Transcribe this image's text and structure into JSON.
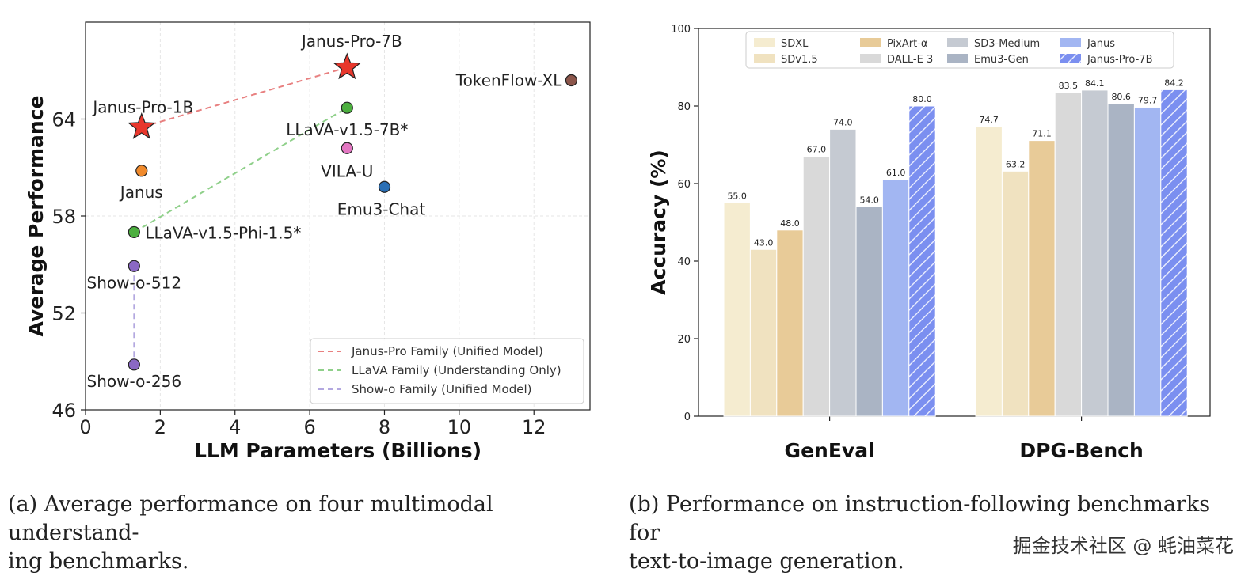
{
  "chart_data": [
    {
      "type": "scatter",
      "xlabel": "LLM Parameters (Billions)",
      "ylabel": "Average Performance",
      "xlim": [
        0,
        13.5
      ],
      "ylim": [
        46,
        70
      ],
      "xticks": [
        0,
        2,
        4,
        6,
        8,
        10,
        12
      ],
      "yticks": [
        46,
        52,
        58,
        64
      ],
      "grid": true,
      "legend_position": "bottom-right",
      "points": [
        {
          "label": "Janus-Pro-7B",
          "x": 7.0,
          "y": 67.2,
          "marker": "star",
          "color": "#e8372c"
        },
        {
          "label": "Janus-Pro-1B",
          "x": 1.5,
          "y": 63.5,
          "marker": "star",
          "color": "#e8372c"
        },
        {
          "label": "TokenFlow-XL",
          "x": 13.0,
          "y": 66.4,
          "marker": "circle",
          "color": "#8c564b"
        },
        {
          "label": "LLaVA-v1.5-7B*",
          "x": 7.0,
          "y": 64.7,
          "marker": "circle",
          "color": "#4caf3f"
        },
        {
          "label": "VILA-U",
          "x": 7.0,
          "y": 62.2,
          "marker": "circle",
          "color": "#e377c2"
        },
        {
          "label": "Janus",
          "x": 1.5,
          "y": 60.8,
          "marker": "circle",
          "color": "#f08a2c"
        },
        {
          "label": "Emu3-Chat",
          "x": 8.0,
          "y": 59.8,
          "marker": "circle",
          "color": "#2a6fb5"
        },
        {
          "label": "LLaVA-v1.5-Phi-1.5*",
          "x": 1.3,
          "y": 57.0,
          "marker": "circle",
          "color": "#4caf3f"
        },
        {
          "label": "Show-o-512",
          "x": 1.3,
          "y": 54.9,
          "marker": "circle",
          "color": "#8a68c4"
        },
        {
          "label": "Show-o-256",
          "x": 1.3,
          "y": 48.8,
          "marker": "circle",
          "color": "#8a68c4"
        }
      ],
      "lines": [
        {
          "name": "Janus-Pro Family (Unified Model)",
          "from": [
            1.5,
            63.5
          ],
          "to": [
            7.0,
            67.2
          ],
          "color": "#e88080"
        },
        {
          "name": "LLaVA Family (Understanding Only)",
          "from": [
            1.3,
            57.0
          ],
          "to": [
            7.0,
            64.7
          ],
          "color": "#8fd08a"
        },
        {
          "name": "Show-o Family (Unified Model)",
          "from": [
            1.3,
            54.9
          ],
          "to": [
            1.3,
            48.8
          ],
          "color": "#b3a8e0"
        }
      ]
    },
    {
      "type": "bar",
      "ylabel": "Accuracy (%)",
      "ylim": [
        0,
        100
      ],
      "yticks": [
        0,
        20,
        40,
        60,
        80,
        100
      ],
      "categories": [
        "GenEval",
        "DPG-Bench"
      ],
      "legend_position": "top",
      "series": [
        {
          "name": "SDXL",
          "values": [
            55.0,
            74.7
          ],
          "color": "#f5ecd0",
          "hatch": false
        },
        {
          "name": "SDv1.5",
          "values": [
            43.0,
            63.2
          ],
          "color": "#f0e2c0",
          "hatch": false
        },
        {
          "name": "PixArt-α",
          "values": [
            48.0,
            71.1
          ],
          "color": "#e8cb98",
          "hatch": false
        },
        {
          "name": "DALL-E 3",
          "values": [
            67.0,
            83.5
          ],
          "color": "#d9d9d9",
          "hatch": false
        },
        {
          "name": "SD3-Medium",
          "values": [
            74.0,
            84.1
          ],
          "color": "#c5cad2",
          "hatch": false
        },
        {
          "name": "Emu3-Gen",
          "values": [
            54.0,
            80.6
          ],
          "color": "#aab4c4",
          "hatch": false
        },
        {
          "name": "Janus",
          "values": [
            61.0,
            79.7
          ],
          "color": "#a2b6f2",
          "hatch": false
        },
        {
          "name": "Janus-Pro-7B",
          "values": [
            80.0,
            84.2
          ],
          "color": "#7b8ff0",
          "hatch": true
        }
      ]
    }
  ],
  "captions": {
    "a_line1": "(a)  Average performance on four multimodal understand-",
    "a_line2": "ing benchmarks.",
    "b_line1": "(b)  Performance on instruction-following benchmarks for",
    "b_line2": "text-to-image generation."
  },
  "watermark": "掘金技术社区 @ 蚝油菜花"
}
